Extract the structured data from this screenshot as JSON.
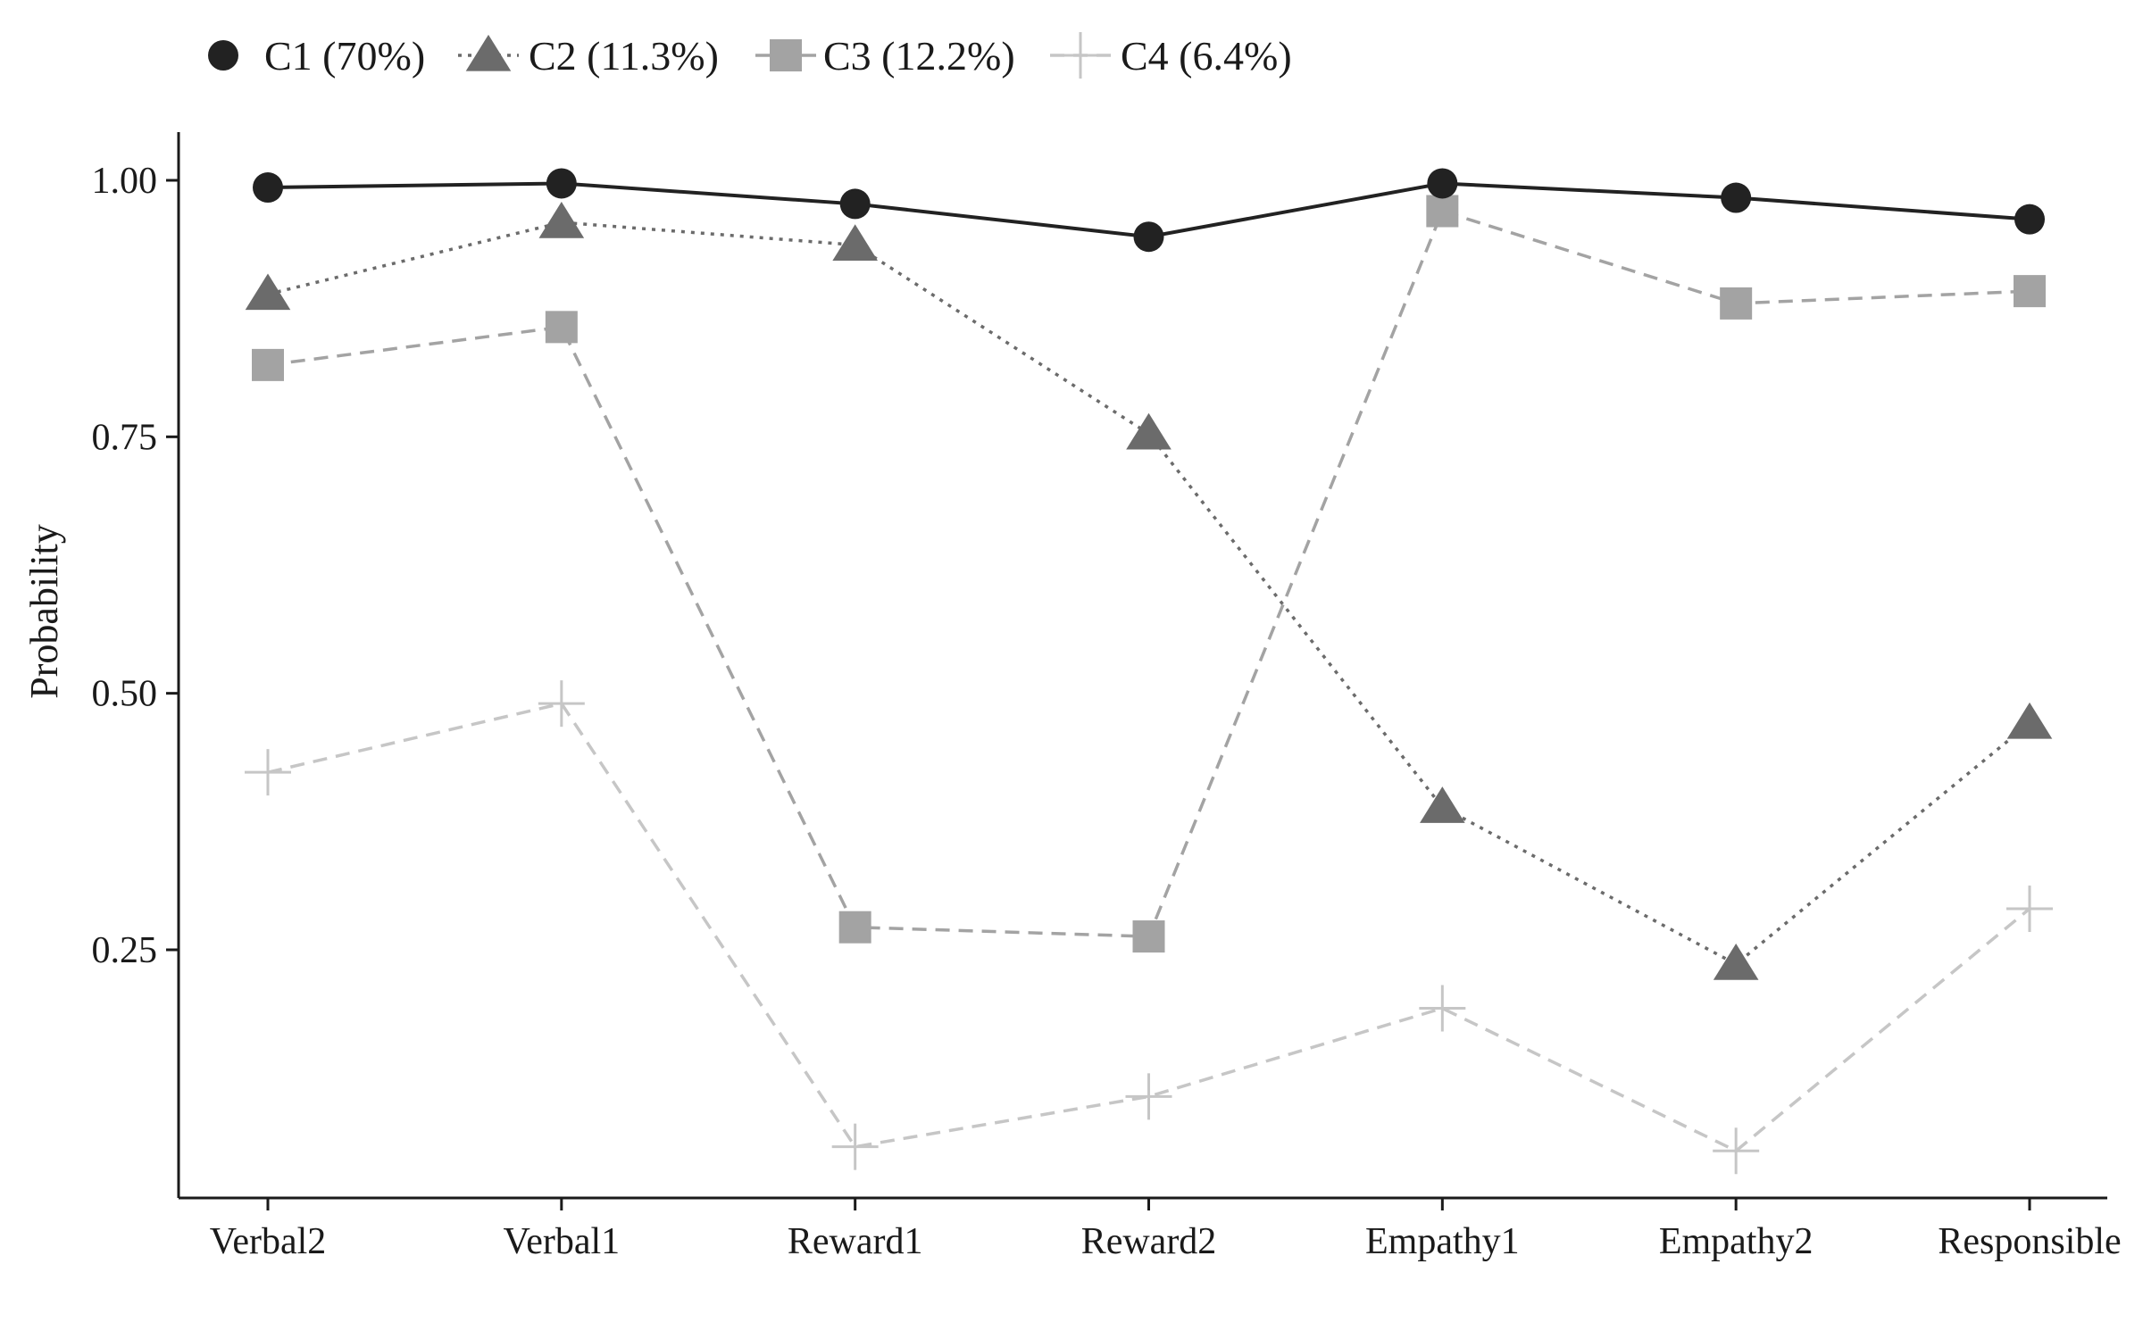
{
  "chart_data": {
    "type": "line",
    "categories": [
      "Verbal2",
      "Verbal1",
      "Reward1",
      "Reward2",
      "Empathy1",
      "Empathy2",
      "Responsible"
    ],
    "ylabel": "Probability",
    "xlabel": "",
    "yticks": [
      {
        "value": 1.0,
        "label": "1.00"
      },
      {
        "value": 0.75,
        "label": "0.75"
      },
      {
        "value": 0.5,
        "label": "0.50"
      },
      {
        "value": 0.25,
        "label": "0.25"
      }
    ],
    "ylim": [
      0.0,
      1.05
    ],
    "grid": false,
    "legend_position": "top-left",
    "series": [
      {
        "name": "C1 (70%)",
        "marker": "circle",
        "line": "solid",
        "color": "#222222",
        "values": [
          0.993,
          0.997,
          0.977,
          0.945,
          0.997,
          0.983,
          0.962
        ]
      },
      {
        "name": "C2 (11.3%)",
        "marker": "triangle",
        "line": "dotted",
        "color": "#6b6b6b",
        "values": [
          0.889,
          0.959,
          0.937,
          0.753,
          0.389,
          0.236,
          0.471
        ]
      },
      {
        "name": "C3 (12.2%)",
        "marker": "square",
        "line": "dashed",
        "color": "#a3a3a3",
        "values": [
          0.82,
          0.857,
          0.272,
          0.263,
          0.97,
          0.88,
          0.892
        ]
      },
      {
        "name": "C4 (6.4%)",
        "marker": "plus",
        "line": "dashed",
        "color": "#c6c6c6",
        "values": [
          0.423,
          0.49,
          0.058,
          0.107,
          0.193,
          0.054,
          0.29
        ]
      }
    ]
  }
}
